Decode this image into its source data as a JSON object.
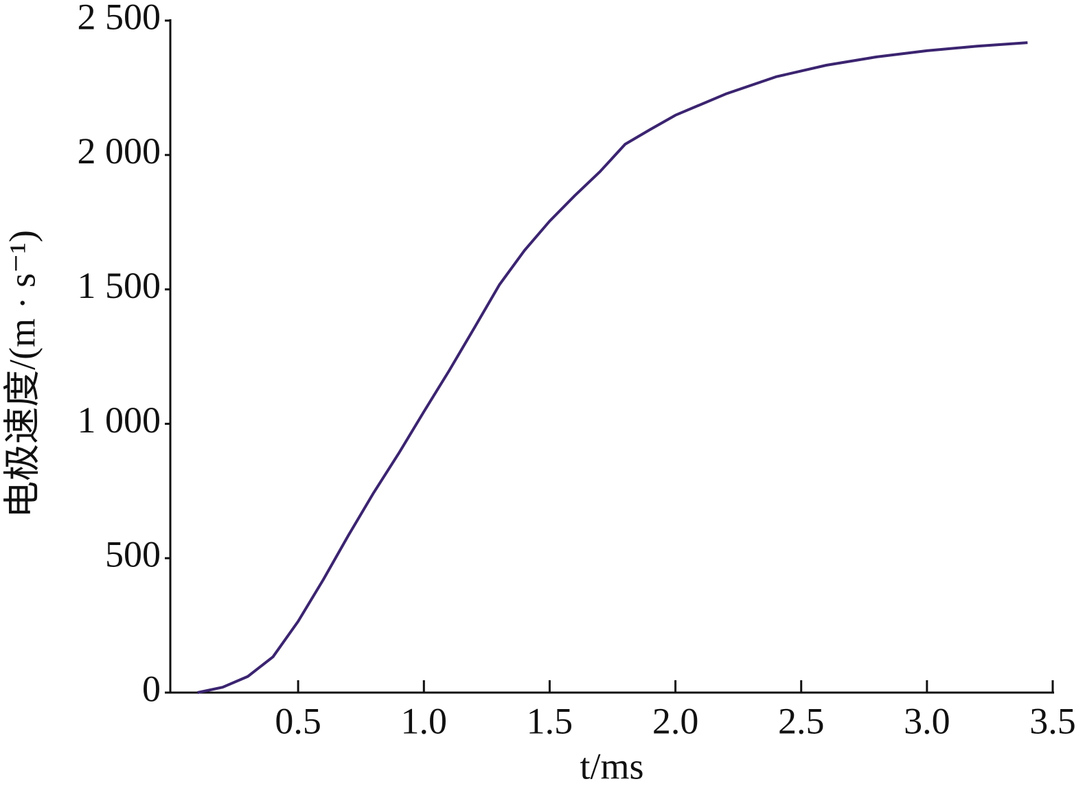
{
  "chart_data": {
    "type": "line",
    "xlabel": "t/ms",
    "ylabel": "电极速度/(m · s⁻¹)",
    "x": [
      0.1,
      0.2,
      0.3,
      0.4,
      0.5,
      0.6,
      0.7,
      0.8,
      0.9,
      1.0,
      1.1,
      1.2,
      1.3,
      1.4,
      1.5,
      1.6,
      1.7,
      1.8,
      1.9,
      2.0,
      2.2,
      2.4,
      2.6,
      2.8,
      3.0,
      3.2,
      3.4
    ],
    "series": [
      {
        "color": "#3b2470",
        "values": [
          0,
          20,
          60,
          133,
          265,
          420,
          585,
          743,
          890,
          1045,
          1197,
          1356,
          1517,
          1645,
          1754,
          1849,
          1938,
          2040,
          2095,
          2148,
          2227,
          2291,
          2334,
          2365,
          2388,
          2405,
          2418
        ]
      }
    ],
    "xlim": [
      0,
      3.5
    ],
    "ylim": [
      0,
      2500
    ],
    "xticks": [
      0.5,
      {
        "value": 1,
        "label": "1.0"
      },
      1.5,
      {
        "value": 2,
        "label": "2.0"
      },
      2.5,
      {
        "value": 3,
        "label": "3.0"
      },
      3.5
    ],
    "yticks": [
      0,
      500,
      {
        "value": 1000,
        "label": "1 000"
      },
      {
        "value": 1500,
        "label": "1 500"
      },
      {
        "value": 2000,
        "label": "2 000"
      },
      {
        "value": 2500,
        "label": "2 500"
      }
    ]
  }
}
